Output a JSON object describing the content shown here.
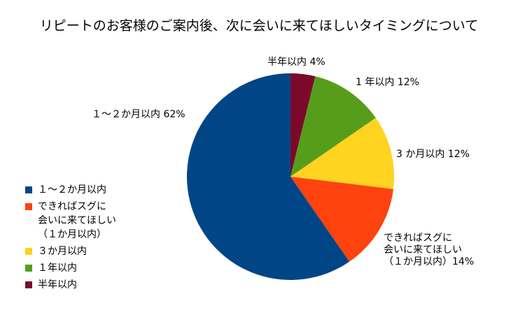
{
  "chart_data": {
    "type": "pie",
    "title": "リピートのお客様のご案内後、次に会いに来てほしいタイミングについて",
    "start_angle_deg": 0,
    "direction": "clockwise",
    "legend_position": "left",
    "slices": [
      {
        "name": "半年以内",
        "value": 4,
        "label": "半年以内 4%",
        "color": "#7b0a2a"
      },
      {
        "name": "1年以内",
        "value": 12,
        "label": "1 年以内  12%",
        "color": "#579d1c"
      },
      {
        "name": "3か月以内",
        "value": 12,
        "label": "3 か月以内  12%",
        "color": "#ffd320"
      },
      {
        "name": "できればスグに会いに来てほしい（1か月以内）",
        "value": 14,
        "label": "できればスグに\n会いに来てほしい\n（１か月以内）14%",
        "color": "#ff420e"
      },
      {
        "name": "1～2か月以内",
        "value": 62,
        "label": "１～２か月以内  62%",
        "color": "#004586"
      }
    ],
    "legend": [
      {
        "text": "１～２か月以内",
        "color": "#004586"
      },
      {
        "text": "できればスグに\n会いに来てほしい\n（１か月以内）",
        "color": "#ff420e"
      },
      {
        "text": "３か月以内",
        "color": "#ffd320"
      },
      {
        "text": "１年以内",
        "color": "#579d1c"
      },
      {
        "text": "半年以内",
        "color": "#7b0a2a"
      }
    ]
  }
}
